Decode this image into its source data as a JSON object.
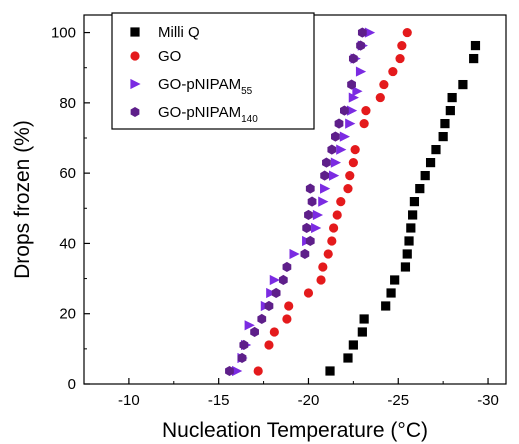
{
  "chart_data": {
    "type": "scatter",
    "xlabel": "Nucleation Temperature (°C)",
    "ylabel": "Drops frozen (%)",
    "xlim": [
      -7.5,
      -31
    ],
    "ylim": [
      0,
      105
    ],
    "x_axis_reversed": true,
    "x_ticks": [
      -10,
      -15,
      -20,
      -25,
      -30
    ],
    "x_tick_labels": [
      "-10",
      "-15",
      "-20",
      "-25",
      "-30"
    ],
    "y_ticks": [
      0,
      20,
      40,
      60,
      80,
      100
    ],
    "y_tick_labels": [
      "0",
      "20",
      "40",
      "60",
      "80",
      "100"
    ],
    "grid": false,
    "legend_position": "top-left",
    "series": [
      {
        "name": "Milli Q",
        "legend_main": "Milli Q",
        "legend_sub": "",
        "marker": "square",
        "color": "#000000",
        "points": [
          [
            -21.2,
            3.7
          ],
          [
            -22.2,
            7.4
          ],
          [
            -22.5,
            11.1
          ],
          [
            -23.0,
            14.8
          ],
          [
            -23.1,
            18.5
          ],
          [
            -24.3,
            22.2
          ],
          [
            -24.6,
            25.9
          ],
          [
            -24.8,
            29.6
          ],
          [
            -25.4,
            33.3
          ],
          [
            -25.5,
            37.0
          ],
          [
            -25.6,
            40.7
          ],
          [
            -25.7,
            44.4
          ],
          [
            -25.8,
            48.1
          ],
          [
            -25.9,
            51.9
          ],
          [
            -26.2,
            55.6
          ],
          [
            -26.5,
            59.3
          ],
          [
            -26.8,
            63.0
          ],
          [
            -27.1,
            66.7
          ],
          [
            -27.5,
            70.4
          ],
          [
            -27.6,
            74.1
          ],
          [
            -27.9,
            77.8
          ],
          [
            -28.0,
            81.5
          ],
          [
            -28.6,
            85.2
          ],
          [
            -29.2,
            92.6
          ],
          [
            -29.3,
            96.3
          ]
        ]
      },
      {
        "name": "GO",
        "legend_main": "GO",
        "legend_sub": "",
        "marker": "circle",
        "color": "#e41a1c",
        "points": [
          [
            -17.2,
            3.7
          ],
          [
            -17.8,
            11.1
          ],
          [
            -18.1,
            14.8
          ],
          [
            -18.8,
            18.5
          ],
          [
            -18.9,
            22.2
          ],
          [
            -20.0,
            25.9
          ],
          [
            -20.7,
            29.6
          ],
          [
            -20.8,
            33.3
          ],
          [
            -21.1,
            37.0
          ],
          [
            -21.3,
            40.7
          ],
          [
            -21.4,
            44.4
          ],
          [
            -21.6,
            48.1
          ],
          [
            -21.8,
            51.9
          ],
          [
            -22.2,
            55.6
          ],
          [
            -22.3,
            59.3
          ],
          [
            -22.5,
            63.0
          ],
          [
            -22.6,
            66.7
          ],
          [
            -23.1,
            74.1
          ],
          [
            -23.2,
            77.8
          ],
          [
            -24.0,
            81.5
          ],
          [
            -24.2,
            85.2
          ],
          [
            -24.7,
            88.9
          ],
          [
            -25.1,
            92.6
          ],
          [
            -25.2,
            96.3
          ],
          [
            -25.5,
            100.0
          ]
        ]
      },
      {
        "name": "GO-pNIPAM55",
        "legend_main": "GO-pNIPAM",
        "legend_sub": "55",
        "marker": "triangle-right",
        "color": "#7b2be2",
        "points": [
          [
            -16.0,
            3.7
          ],
          [
            -16.3,
            7.4
          ],
          [
            -16.5,
            11.1
          ],
          [
            -16.7,
            16.7
          ],
          [
            -17.6,
            22.2
          ],
          [
            -17.9,
            25.9
          ],
          [
            -18.1,
            29.6
          ],
          [
            -19.2,
            37.0
          ],
          [
            -19.9,
            40.7
          ],
          [
            -20.4,
            44.4
          ],
          [
            -20.5,
            48.1
          ],
          [
            -20.8,
            51.9
          ],
          [
            -20.9,
            55.6
          ],
          [
            -21.4,
            59.3
          ],
          [
            -21.5,
            63.0
          ],
          [
            -21.8,
            66.7
          ],
          [
            -22.0,
            70.4
          ],
          [
            -22.3,
            74.1
          ],
          [
            -22.4,
            77.8
          ],
          [
            -22.5,
            81.5
          ],
          [
            -22.7,
            83.3
          ],
          [
            -22.9,
            88.9
          ],
          [
            -22.6,
            92.6
          ],
          [
            -23.0,
            96.3
          ],
          [
            -23.4,
            100.0
          ]
        ]
      },
      {
        "name": "GO-pNIPAM140",
        "legend_main": "GO-pNIPAM",
        "legend_sub": "140",
        "marker": "hexagon",
        "color": "#5e1f8a",
        "points": [
          [
            -15.6,
            3.7
          ],
          [
            -16.3,
            7.4
          ],
          [
            -16.4,
            11.1
          ],
          [
            -17.0,
            14.8
          ],
          [
            -17.4,
            18.5
          ],
          [
            -17.8,
            22.2
          ],
          [
            -18.2,
            25.9
          ],
          [
            -18.6,
            29.6
          ],
          [
            -18.8,
            33.3
          ],
          [
            -19.8,
            37.0
          ],
          [
            -20.1,
            40.7
          ],
          [
            -19.9,
            44.4
          ],
          [
            -20.0,
            48.1
          ],
          [
            -20.2,
            51.9
          ],
          [
            -20.1,
            55.6
          ],
          [
            -20.9,
            59.3
          ],
          [
            -21.0,
            63.0
          ],
          [
            -21.3,
            66.7
          ],
          [
            -21.5,
            70.4
          ],
          [
            -21.7,
            74.1
          ],
          [
            -22.0,
            77.8
          ],
          [
            -22.4,
            85.2
          ],
          [
            -22.5,
            92.6
          ],
          [
            -22.9,
            96.3
          ],
          [
            -23.0,
            100.0
          ]
        ]
      }
    ]
  }
}
